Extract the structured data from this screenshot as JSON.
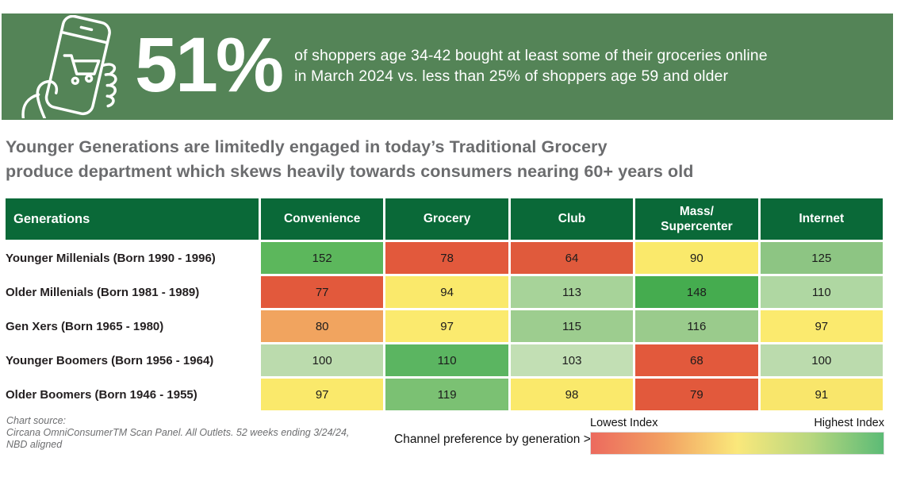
{
  "banner": {
    "bg_color": "#548457",
    "stat": "51%",
    "description": "of shoppers age 34-42 bought at least some of their groceries online\nin March 2024 vs. less than 25% of shoppers age 59 and older"
  },
  "headline": "Younger Generations are limitedly engaged in today’s Traditional Grocery\nproduce department which skews heavily towards consumers nearing 60+ years old",
  "table": {
    "header_bg": "#0A6938",
    "columns": [
      "Generations",
      "Convenience",
      "Grocery",
      "Club",
      "Mass/\nSupercenter",
      "Internet"
    ],
    "rows": [
      {
        "label": "Younger Millenials (Born 1990 - 1996)",
        "cells": [
          {
            "v": "152",
            "bg": "#5CB75C"
          },
          {
            "v": "78",
            "bg": "#E2593C"
          },
          {
            "v": "64",
            "bg": "#E05A3C"
          },
          {
            "v": "90",
            "bg": "#FAE96B"
          },
          {
            "v": "125",
            "bg": "#8DC583"
          }
        ]
      },
      {
        "label": "Older Millenials (Born 1981 - 1989)",
        "cells": [
          {
            "v": "77",
            "bg": "#E2593C"
          },
          {
            "v": "94",
            "bg": "#FAE96B"
          },
          {
            "v": "113",
            "bg": "#A7D399"
          },
          {
            "v": "148",
            "bg": "#45AC4F"
          },
          {
            "v": "110",
            "bg": "#AFD7A2"
          }
        ]
      },
      {
        "label": "Gen Xers (Born 1965 - 1980)",
        "cells": [
          {
            "v": "80",
            "bg": "#F1A45F"
          },
          {
            "v": "97",
            "bg": "#FBEA6E"
          },
          {
            "v": "115",
            "bg": "#9DCD8F"
          },
          {
            "v": "116",
            "bg": "#9ACB8C"
          },
          {
            "v": "97",
            "bg": "#FBEA6E"
          }
        ]
      },
      {
        "label": "Younger Boomers (Born 1956 - 1964)",
        "cells": [
          {
            "v": "100",
            "bg": "#BBDBAD"
          },
          {
            "v": "110",
            "bg": "#5BB561"
          },
          {
            "v": "103",
            "bg": "#C2DFB4"
          },
          {
            "v": "68",
            "bg": "#E2593C"
          },
          {
            "v": "100",
            "bg": "#BBDBAD"
          }
        ]
      },
      {
        "label": "Older Boomers (Born 1946 - 1955)",
        "cells": [
          {
            "v": "97",
            "bg": "#FAE96B"
          },
          {
            "v": "119",
            "bg": "#7BC173"
          },
          {
            "v": "98",
            "bg": "#FAE96B"
          },
          {
            "v": "79",
            "bg": "#E2593C"
          },
          {
            "v": "91",
            "bg": "#F9E66B"
          }
        ]
      }
    ]
  },
  "footer": {
    "source_label": "Chart source:",
    "source_text": "Circana OmniConsumerTM Scan Panel. All Outlets. 52 weeks ending 3/24/24,\nNBD aligned",
    "channel_note": "Channel preference by generation >",
    "legend": {
      "low_label": "Lowest Index",
      "high_label": "Highest Index",
      "gradient": [
        "#EC6A5E",
        "#F2A162",
        "#FAE87B",
        "#B8D77F",
        "#5CBB76"
      ]
    }
  },
  "chart_data": {
    "type": "heatmap",
    "title": "Younger Generations are limitedly engaged in today’s Traditional Grocery produce department which skews heavily towards consumers nearing 60+ years old",
    "subtitle_stat": "51% of shoppers age 34-42 bought at least some of their groceries online in March 2024 vs. less than 25% of shoppers age 59 and older",
    "rows": [
      "Younger Millenials (Born 1990 - 1996)",
      "Older Millenials (Born 1981 - 1989)",
      "Gen Xers (Born 1965 - 1980)",
      "Younger Boomers (Born 1956 - 1964)",
      "Older Boomers (Born 1946 - 1955)"
    ],
    "columns": [
      "Convenience",
      "Grocery",
      "Club",
      "Mass/Supercenter",
      "Internet"
    ],
    "values": [
      [
        152,
        78,
        64,
        90,
        125
      ],
      [
        77,
        94,
        113,
        148,
        110
      ],
      [
        80,
        97,
        115,
        116,
        97
      ],
      [
        100,
        110,
        103,
        68,
        100
      ],
      [
        97,
        119,
        98,
        79,
        91
      ]
    ],
    "color_scale": {
      "low_label": "Lowest Index",
      "high_label": "Highest Index",
      "scheme": "red-yellow-green",
      "scaling": "per-row"
    },
    "annotation": "Channel preference by generation"
  }
}
